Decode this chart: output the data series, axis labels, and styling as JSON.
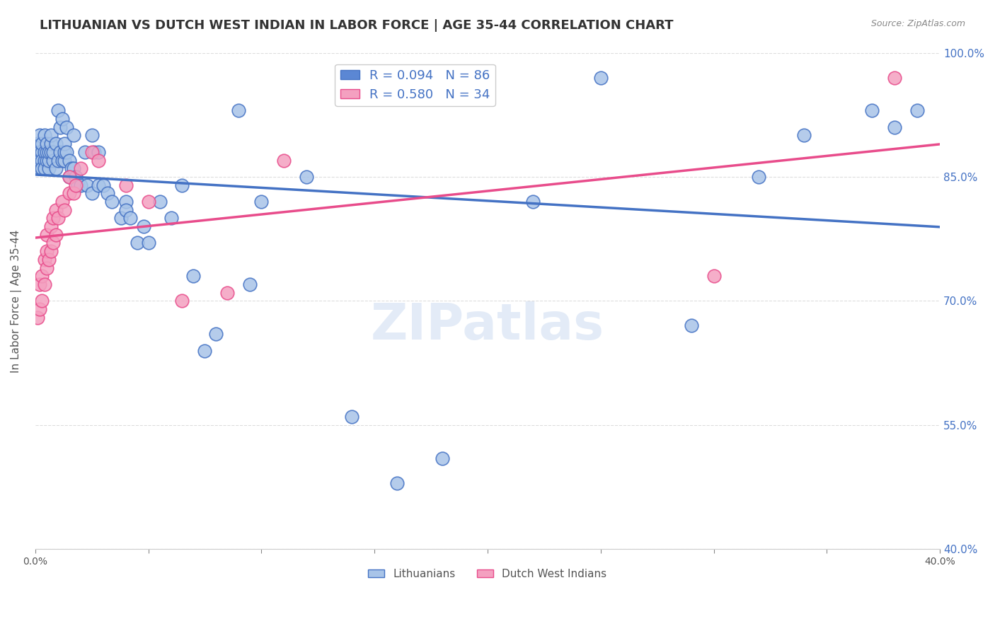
{
  "title": "LITHUANIAN VS DUTCH WEST INDIAN IN LABOR FORCE | AGE 35-44 CORRELATION CHART",
  "source": "Source: ZipAtlas.com",
  "ylabel": "In Labor Force | Age 35-44",
  "xlabel": "",
  "xlim": [
    0.0,
    0.4
  ],
  "ylim": [
    0.4,
    1.0
  ],
  "yticks": [
    0.4,
    0.55,
    0.7,
    0.85,
    1.0
  ],
  "ytick_labels": [
    "40.0%",
    "55.0%",
    "70.0%",
    "85.0%",
    "100.0%"
  ],
  "xticks": [
    0.0,
    0.05,
    0.1,
    0.15,
    0.2,
    0.25,
    0.3,
    0.35,
    0.4
  ],
  "xtick_labels": [
    "0.0%",
    "",
    "",
    "",
    "",
    "",
    "",
    "",
    "40.0%"
  ],
  "blue_R": 0.094,
  "blue_N": 86,
  "pink_R": 0.58,
  "pink_N": 34,
  "blue_scatter_x": [
    0.001,
    0.001,
    0.001,
    0.002,
    0.002,
    0.002,
    0.002,
    0.003,
    0.003,
    0.003,
    0.003,
    0.003,
    0.004,
    0.004,
    0.004,
    0.004,
    0.005,
    0.005,
    0.005,
    0.006,
    0.006,
    0.006,
    0.007,
    0.007,
    0.007,
    0.008,
    0.008,
    0.009,
    0.009,
    0.01,
    0.01,
    0.011,
    0.011,
    0.012,
    0.012,
    0.013,
    0.013,
    0.013,
    0.014,
    0.014,
    0.015,
    0.015,
    0.016,
    0.017,
    0.017,
    0.018,
    0.019,
    0.02,
    0.022,
    0.023,
    0.025,
    0.025,
    0.026,
    0.028,
    0.028,
    0.03,
    0.032,
    0.034,
    0.038,
    0.04,
    0.04,
    0.042,
    0.045,
    0.048,
    0.05,
    0.055,
    0.06,
    0.065,
    0.07,
    0.075,
    0.08,
    0.09,
    0.095,
    0.1,
    0.12,
    0.14,
    0.16,
    0.18,
    0.22,
    0.25,
    0.29,
    0.32,
    0.34,
    0.37,
    0.38,
    0.39
  ],
  "blue_scatter_y": [
    0.88,
    0.87,
    0.89,
    0.86,
    0.88,
    0.9,
    0.87,
    0.86,
    0.88,
    0.89,
    0.87,
    0.86,
    0.87,
    0.88,
    0.86,
    0.9,
    0.87,
    0.88,
    0.89,
    0.86,
    0.87,
    0.88,
    0.88,
    0.89,
    0.9,
    0.87,
    0.88,
    0.86,
    0.89,
    0.87,
    0.93,
    0.88,
    0.91,
    0.87,
    0.92,
    0.87,
    0.88,
    0.89,
    0.88,
    0.91,
    0.85,
    0.87,
    0.86,
    0.86,
    0.9,
    0.85,
    0.84,
    0.84,
    0.88,
    0.84,
    0.83,
    0.9,
    0.88,
    0.84,
    0.88,
    0.84,
    0.83,
    0.82,
    0.8,
    0.82,
    0.81,
    0.8,
    0.77,
    0.79,
    0.77,
    0.82,
    0.8,
    0.84,
    0.73,
    0.64,
    0.66,
    0.93,
    0.72,
    0.82,
    0.85,
    0.56,
    0.48,
    0.51,
    0.82,
    0.97,
    0.67,
    0.85,
    0.9,
    0.93,
    0.91,
    0.93
  ],
  "pink_scatter_x": [
    0.001,
    0.002,
    0.002,
    0.003,
    0.003,
    0.004,
    0.004,
    0.005,
    0.005,
    0.005,
    0.006,
    0.007,
    0.007,
    0.008,
    0.008,
    0.009,
    0.009,
    0.01,
    0.012,
    0.013,
    0.015,
    0.015,
    0.017,
    0.018,
    0.02,
    0.025,
    0.028,
    0.04,
    0.05,
    0.065,
    0.085,
    0.11,
    0.3,
    0.38
  ],
  "pink_scatter_y": [
    0.68,
    0.69,
    0.72,
    0.7,
    0.73,
    0.72,
    0.75,
    0.74,
    0.76,
    0.78,
    0.75,
    0.76,
    0.79,
    0.77,
    0.8,
    0.78,
    0.81,
    0.8,
    0.82,
    0.81,
    0.83,
    0.85,
    0.83,
    0.84,
    0.86,
    0.88,
    0.87,
    0.84,
    0.82,
    0.7,
    0.71,
    0.87,
    0.73,
    0.97
  ],
  "blue_line_color": "#4472c4",
  "pink_line_color": "#e84c8b",
  "blue_scatter_color": "#a8c4e8",
  "pink_scatter_color": "#f4a0c0",
  "blue_legend_color": "#5b87d4",
  "pink_legend_color": "#f4a0c0",
  "legend_text_color": "#4472c4",
  "watermark_color": "#c8d8f0",
  "grid_color": "#dddddd",
  "title_color": "#333333",
  "axis_label_color": "#555555",
  "right_tick_color": "#4472c4",
  "source_color": "#888888"
}
